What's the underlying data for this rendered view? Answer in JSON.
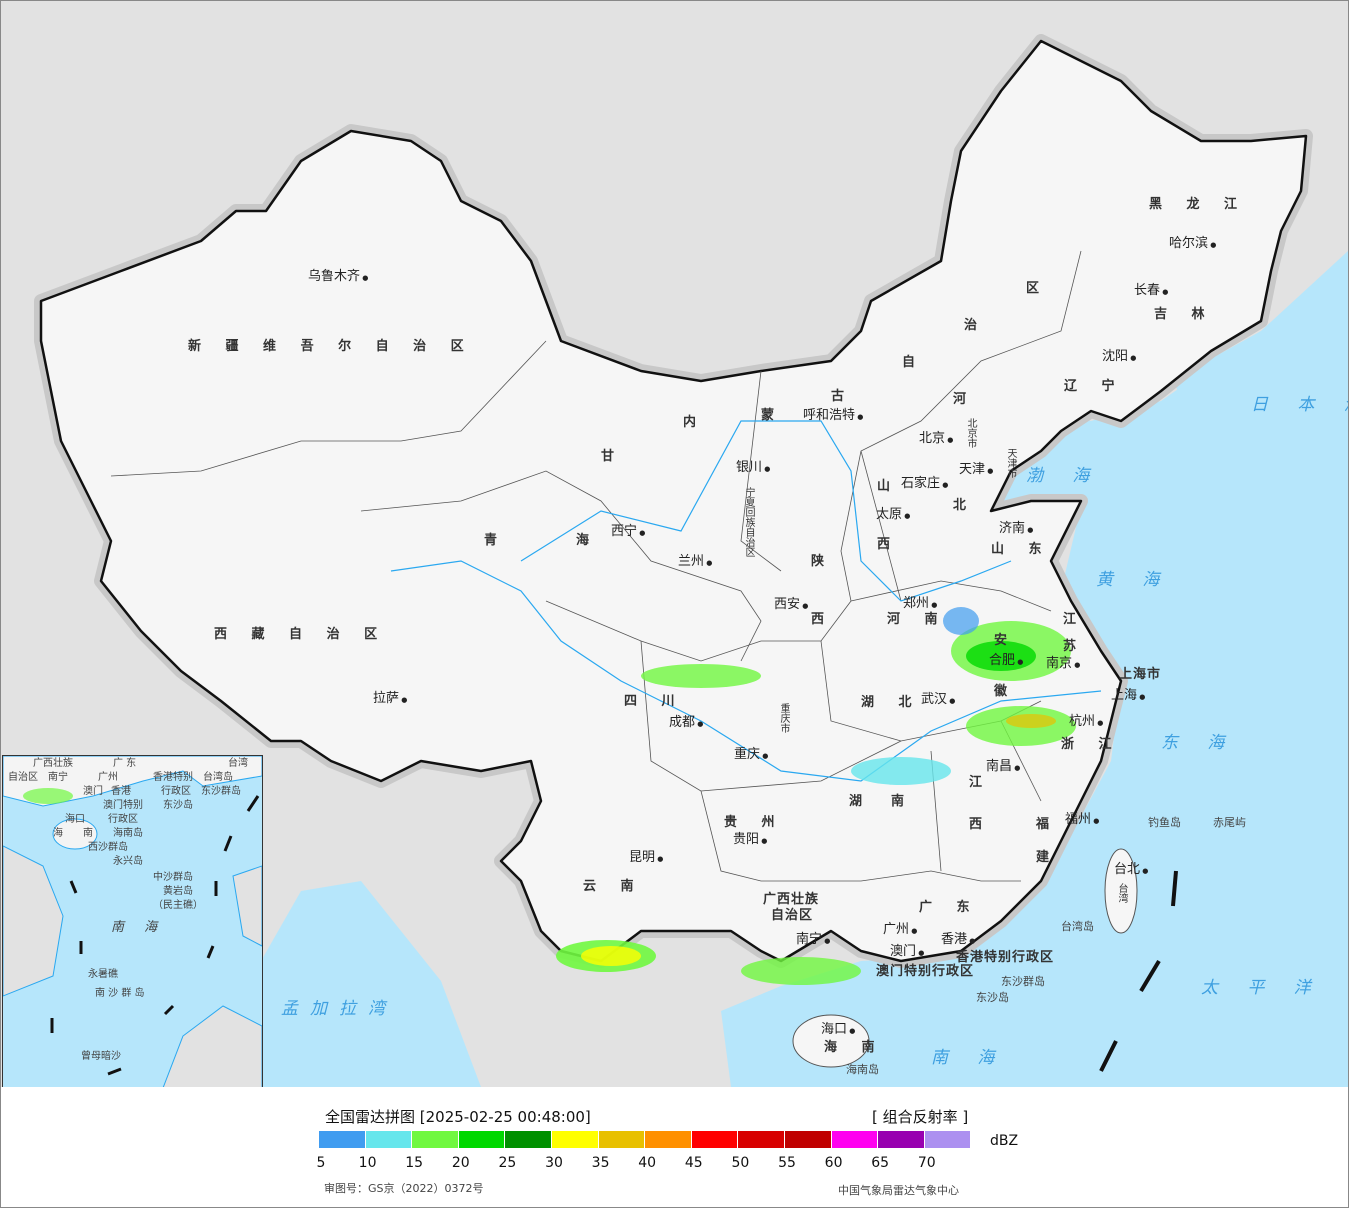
{
  "title": "全国雷达拼图 [2025-02-25 00:48:00]",
  "product": "[ 组合反射率 ]",
  "unit": "dBZ",
  "approval_number": "审图号：GS京（2022）0372号",
  "producer": "中国气象局雷达气象中心",
  "colors": {
    "land": "#f4f4f4",
    "sea": "#b6e6fb",
    "foreign_land": "#e2e2e2",
    "border": "#111111",
    "rivers": "#2aa8f0"
  },
  "legend": {
    "colors": [
      "#409cf0",
      "#66e6ec",
      "#70f840",
      "#00d800",
      "#009000",
      "#ffff00",
      "#e8c000",
      "#ff9000",
      "#ff0000",
      "#d80000",
      "#c00000",
      "#ff00f0",
      "#9800b0",
      "#ac90f0"
    ],
    "ticks": [
      "5",
      "10",
      "15",
      "20",
      "25",
      "30",
      "35",
      "40",
      "45",
      "50",
      "55",
      "60",
      "65",
      "70"
    ]
  },
  "provinces": [
    "新 疆 维 吾 尔 自 治 区",
    "西 藏 自 治 区",
    "青　　　海",
    "甘",
    "内",
    "蒙",
    "古",
    "自",
    "治",
    "区",
    "黑 龙 江",
    "吉 林",
    "辽 宁",
    "河",
    "北",
    "山",
    "西",
    "陕",
    "西",
    "山 东",
    "河 南",
    "江",
    "苏",
    "安",
    "徽",
    "上海市",
    "湖 北",
    "浙 江",
    "四 川",
    "湖",
    "南",
    "江",
    "西",
    "贵 州",
    "福",
    "建",
    "云 南",
    "广西壮族",
    "自治区",
    "广 东",
    "香港特别行政区",
    "澳门特别行政区",
    "海 南",
    "北京市",
    "天津市",
    "宁夏回族自治区",
    "重庆市",
    "台湾"
  ],
  "cities": [
    "乌鲁木齐",
    "拉萨",
    "西宁",
    "兰州",
    "银川",
    "呼和浩特",
    "哈尔滨",
    "长春",
    "沈阳",
    "北京",
    "天津",
    "石家庄",
    "太原",
    "济南",
    "郑州",
    "西安",
    "合肥",
    "南京",
    "武汉",
    "成都",
    "重庆",
    "杭州",
    "南昌",
    "贵阳",
    "福州",
    "台北",
    "昆明",
    "南宁",
    "广州",
    "澳门",
    "香港",
    "海口",
    "上海"
  ],
  "islands": [
    "东沙群岛",
    "东沙岛",
    "钓鱼岛",
    "赤尾屿",
    "台湾岛",
    "海南岛"
  ],
  "seas": [
    "日 本 海",
    "渤 海",
    "黄 海",
    "东 海",
    "太 平 洋",
    "南 海",
    "孟加拉湾"
  ],
  "inset": {
    "labels": [
      "广西壮族",
      "自治区",
      "广 东",
      "台湾",
      "南宁",
      "广州",
      "澳门",
      "香港",
      "香港特别",
      "行政区",
      "澳门特别",
      "行政区",
      "台湾岛",
      "东沙群岛",
      "东沙岛",
      "海口",
      "海",
      "南",
      "海南岛",
      "西沙群岛",
      "永兴岛",
      "中沙群岛",
      "黄岩岛",
      "（民主礁）",
      "永暑礁",
      "南 沙 群 岛",
      "曾母暗沙"
    ],
    "sea": "南 海"
  }
}
